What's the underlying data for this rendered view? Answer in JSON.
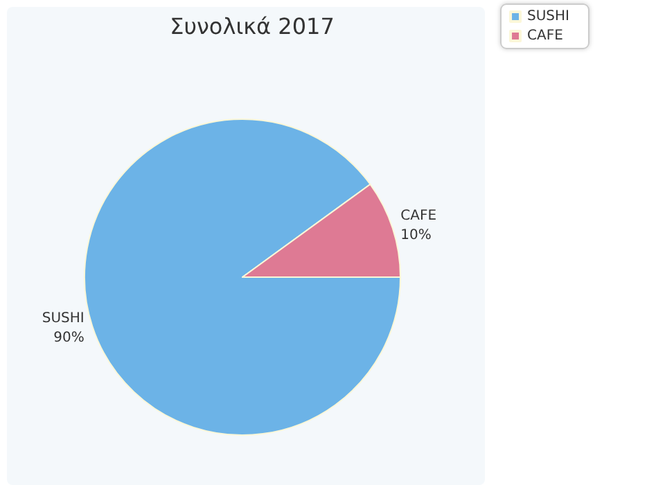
{
  "chart_data": {
    "type": "pie",
    "title": "Συνολικά 2017",
    "categories": [
      "SUSHI",
      "CAFE"
    ],
    "values": [
      90,
      10
    ],
    "colors": [
      "#6cb3e7",
      "#de7a94"
    ],
    "value_labels": [
      "90%",
      "10%"
    ],
    "legend": "top right"
  }
}
